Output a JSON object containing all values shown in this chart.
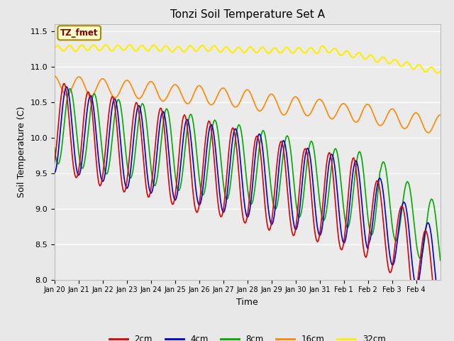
{
  "title": "Tonzi Soil Temperature Set A",
  "xlabel": "Time",
  "ylabel": "Soil Temperature (C)",
  "ylim": [
    8.0,
    11.6
  ],
  "annotation_text": "TZ_fmet",
  "annotation_bg": "#ffffcc",
  "annotation_border": "#aa8800",
  "annotation_text_color": "#880000",
  "fig_bg": "#e8e8e8",
  "plot_bg": "#ebebeb",
  "legend_entries": [
    "2cm",
    "4cm",
    "8cm",
    "16cm",
    "32cm"
  ],
  "line_colors": [
    "#dd0000",
    "#0000cc",
    "#00aa00",
    "#ff8800",
    "#ffee00"
  ],
  "line_widths": [
    1.2,
    1.2,
    1.2,
    1.2,
    1.5
  ],
  "tick_labels": [
    "Jan 20",
    "Jan 21",
    "Jan 22",
    "Jan 23",
    "Jan 24",
    "Jan 25",
    "Jan 26",
    "Jan 27",
    "Jan 28",
    "Jan 29",
    "Jan 30",
    "Jan 31",
    "Feb 1",
    "Feb 2",
    "Feb 3",
    "Feb 4"
  ],
  "grid_color": "#ffffff",
  "yticks": [
    8.0,
    8.5,
    9.0,
    9.5,
    10.0,
    10.5,
    11.0,
    11.5
  ]
}
